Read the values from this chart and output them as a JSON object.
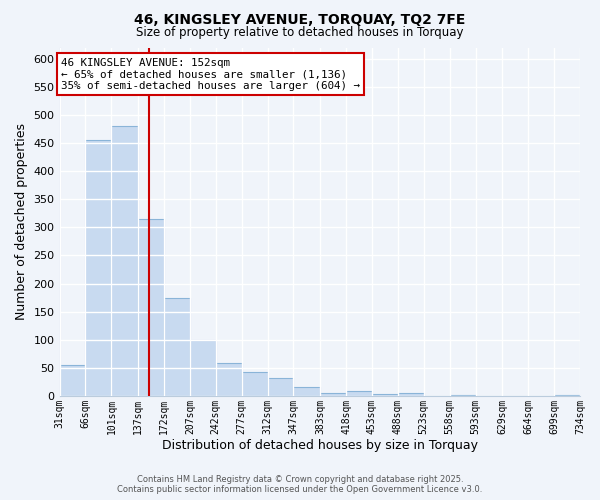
{
  "title": "46, KINGSLEY AVENUE, TORQUAY, TQ2 7FE",
  "subtitle": "Size of property relative to detached houses in Torquay",
  "xlabel": "Distribution of detached houses by size in Torquay",
  "ylabel": "Number of detached properties",
  "bar_color": "#c8daf0",
  "bar_edge_color": "#8ab4d8",
  "background_color": "#f0f4fa",
  "plot_bg_color": "#f0f4fa",
  "grid_color": "#ffffff",
  "vline_x": 152,
  "vline_color": "#cc0000",
  "bin_edges": [
    31,
    66,
    101,
    137,
    172,
    207,
    242,
    277,
    312,
    347,
    383,
    418,
    453,
    488,
    523,
    558,
    593,
    629,
    664,
    699,
    734
  ],
  "bin_counts": [
    55,
    455,
    480,
    315,
    175,
    100,
    58,
    42,
    32,
    15,
    6,
    9,
    3,
    6,
    0,
    1,
    0,
    0,
    0,
    1
  ],
  "tick_labels": [
    "31sqm",
    "66sqm",
    "101sqm",
    "137sqm",
    "172sqm",
    "207sqm",
    "242sqm",
    "277sqm",
    "312sqm",
    "347sqm",
    "383sqm",
    "418sqm",
    "453sqm",
    "488sqm",
    "523sqm",
    "558sqm",
    "593sqm",
    "629sqm",
    "664sqm",
    "699sqm",
    "734sqm"
  ],
  "annotation_title": "46 KINGSLEY AVENUE: 152sqm",
  "annotation_line1": "← 65% of detached houses are smaller (1,136)",
  "annotation_line2": "35% of semi-detached houses are larger (604) →",
  "annotation_box_color": "#ffffff",
  "annotation_box_edge": "#cc0000",
  "footer_line1": "Contains HM Land Registry data © Crown copyright and database right 2025.",
  "footer_line2": "Contains public sector information licensed under the Open Government Licence v3.0.",
  "ylim": [
    0,
    620
  ],
  "yticks": [
    0,
    50,
    100,
    150,
    200,
    250,
    300,
    350,
    400,
    450,
    500,
    550,
    600
  ]
}
